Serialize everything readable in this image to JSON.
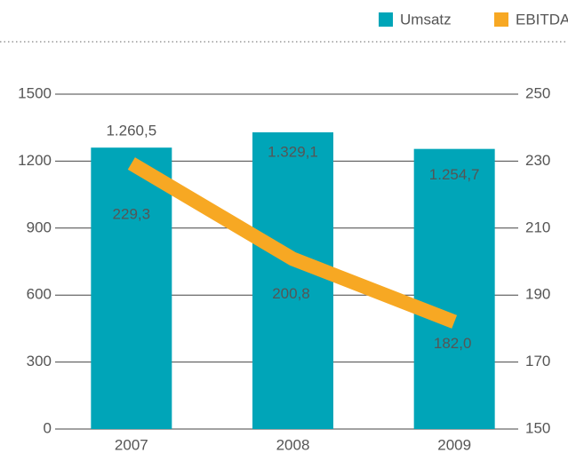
{
  "chart_data": {
    "type": "bar_line",
    "categories": [
      "2007",
      "2008",
      "2009"
    ],
    "series": [
      {
        "name": "Umsatz",
        "type": "bar",
        "color": "#00a5b8",
        "values": [
          1260.5,
          1329.1,
          1254.7
        ],
        "value_labels": [
          "1.260,5",
          "1.329,1",
          "1.254,7"
        ]
      },
      {
        "name": "EBITDA",
        "type": "line",
        "axis": "y2",
        "color": "#f7a823",
        "values": [
          229.3,
          200.8,
          182.0
        ],
        "value_labels": [
          "229,3",
          "200,8",
          "182,0"
        ]
      }
    ],
    "ylim": [
      0,
      1500
    ],
    "yticks": [
      0,
      300,
      600,
      900,
      1200,
      1500
    ],
    "y2lim": [
      150,
      250
    ],
    "y2ticks": [
      150,
      170,
      190,
      210,
      230,
      250
    ],
    "grid": true,
    "legend": "top-right"
  }
}
